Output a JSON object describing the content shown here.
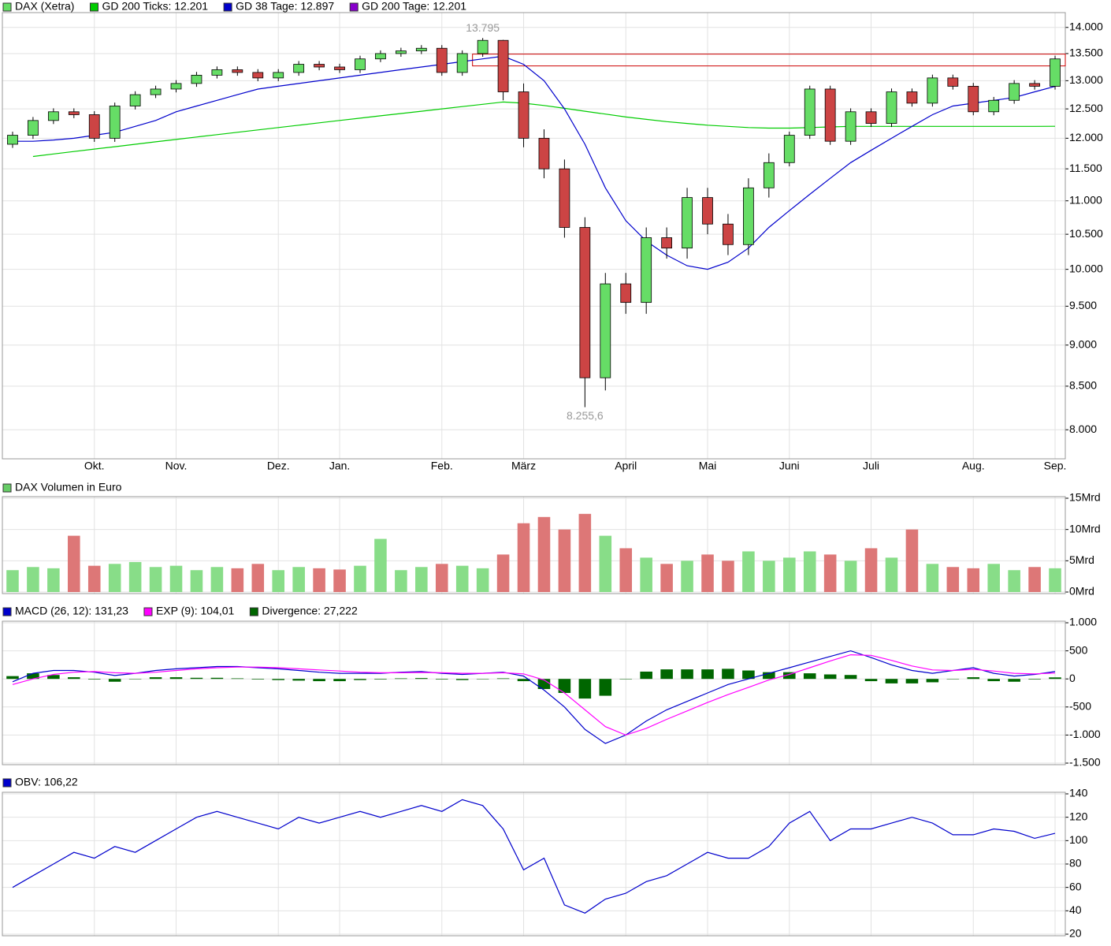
{
  "chart_data": [
    {
      "type": "candlestick",
      "categories": [
        null,
        null,
        null,
        null,
        "Okt.",
        null,
        null,
        null,
        "Nov.",
        null,
        null,
        null,
        null,
        "Dez.",
        null,
        null,
        "Jan.",
        null,
        null,
        null,
        null,
        "Feb.",
        null,
        null,
        null,
        "März",
        null,
        null,
        null,
        null,
        "April",
        null,
        null,
        null,
        "Mai",
        null,
        null,
        null,
        "Juni",
        null,
        null,
        null,
        "Juli",
        null,
        null,
        null,
        null,
        "Aug.",
        null,
        null,
        null,
        "Sep."
      ],
      "open": [
        11900,
        12050,
        12300,
        12450,
        12400,
        12000,
        12550,
        12750,
        12850,
        12950,
        13100,
        13200,
        13150,
        13050,
        13150,
        13300,
        13250,
        13200,
        13400,
        13500,
        13550,
        13600,
        13150,
        13500,
        13750,
        12800,
        12000,
        11500,
        10600,
        8600,
        9800,
        9550,
        10450,
        10300,
        11050,
        10650,
        10350,
        11200,
        11600,
        12050,
        12850,
        11950,
        12450,
        12250,
        12800,
        12600,
        13050,
        12900,
        12450,
        12650,
        12950,
        12900
      ],
      "high": [
        12110,
        12360,
        12510,
        12510,
        12460,
        12610,
        12810,
        12910,
        13010,
        13160,
        13260,
        13260,
        13210,
        13210,
        13360,
        13360,
        13310,
        13460,
        13560,
        13610,
        13660,
        13660,
        13560,
        13795,
        13760,
        12950,
        12150,
        11650,
        10750,
        9950,
        9950,
        10600,
        10600,
        11200,
        11200,
        10800,
        11350,
        11750,
        12110,
        12910,
        12910,
        12510,
        12510,
        12860,
        12860,
        13110,
        13110,
        12960,
        12710,
        13010,
        13010,
        13460
      ],
      "low": [
        11840,
        11990,
        12240,
        12340,
        11940,
        11940,
        12490,
        12690,
        12790,
        12890,
        13040,
        13090,
        12990,
        12990,
        13090,
        13190,
        13140,
        13140,
        13340,
        13440,
        13490,
        13090,
        13090,
        13440,
        12650,
        11850,
        11350,
        10450,
        8255.6,
        8450,
        9400,
        9400,
        10150,
        10150,
        10500,
        10200,
        10200,
        11050,
        11540,
        11990,
        11890,
        11890,
        12190,
        12190,
        12540,
        12540,
        12840,
        12390,
        12390,
        12590,
        12840,
        12840
      ],
      "close": [
        12050,
        12300,
        12450,
        12400,
        12000,
        12550,
        12750,
        12850,
        12950,
        13100,
        13200,
        13150,
        13050,
        13150,
        13300,
        13250,
        13200,
        13400,
        13500,
        13550,
        13600,
        13150,
        13500,
        13750,
        12800,
        12000,
        11500,
        10600,
        8600,
        9800,
        9550,
        10450,
        10300,
        11050,
        10650,
        10350,
        11200,
        11600,
        12050,
        12850,
        11950,
        12450,
        12250,
        12800,
        12600,
        13050,
        12900,
        12450,
        12650,
        12950,
        12900,
        13400
      ],
      "up_color": "#66dd66",
      "down_color": "#cc4444",
      "series": [
        {
          "name": "DAX (Xetra)",
          "color": "#66dd66"
        },
        {
          "name": "GD 200 Ticks: 12.201",
          "color": "#00cc00",
          "values": [
            null,
            11700,
            11740,
            11780,
            11820,
            11860,
            11900,
            11940,
            11980,
            12020,
            12060,
            12100,
            12140,
            12180,
            12220,
            12260,
            12300,
            12340,
            12380,
            12420,
            12460,
            12500,
            12540,
            12580,
            12620,
            12600,
            12560,
            12510,
            12460,
            12410,
            12360,
            12320,
            12280,
            12250,
            12220,
            12200,
            12180,
            12170,
            12170,
            12180,
            12190,
            12200,
            12200,
            12200,
            12200,
            12200,
            12200,
            12200,
            12200,
            12200,
            12200,
            12201
          ]
        },
        {
          "name": "GD 38 Tage: 12.897",
          "color": "#0000cc",
          "values": [
            11950,
            11950,
            11970,
            12000,
            12050,
            12100,
            12200,
            12300,
            12450,
            12550,
            12650,
            12750,
            12850,
            12900,
            12950,
            13000,
            13050,
            13100,
            13150,
            13200,
            13250,
            13300,
            13350,
            13400,
            13450,
            13300,
            13000,
            12500,
            11900,
            11200,
            10700,
            10400,
            10200,
            10050,
            10000,
            10100,
            10300,
            10600,
            10850,
            11100,
            11350,
            11600,
            11800,
            12000,
            12200,
            12400,
            12550,
            12600,
            12650,
            12700,
            12800,
            12897
          ]
        },
        {
          "name": "GD 200 Tage: 12.201",
          "color": "#8800cc"
        }
      ],
      "log": true,
      "ylim": [
        7700,
        14260
      ],
      "yticks": [
        {
          "value": 14000,
          "label": "14.000"
        },
        {
          "value": 13500,
          "label": "13.500"
        },
        {
          "value": 13000,
          "label": "13.000"
        },
        {
          "value": 12500,
          "label": "12.500"
        },
        {
          "value": 12000,
          "label": "12.000"
        },
        {
          "value": 11500,
          "label": "11.500"
        },
        {
          "value": 11000,
          "label": "11.000"
        },
        {
          "value": 10500,
          "label": "10.500"
        },
        {
          "value": 10000,
          "label": "10.000"
        },
        {
          "value": 9500,
          "label": "9.500"
        },
        {
          "value": 9000,
          "label": "9.000"
        },
        {
          "value": 8500,
          "label": "8.500"
        },
        {
          "value": 8000,
          "label": "8.000"
        }
      ],
      "grid": true,
      "annotations": [
        {
          "value": 13795,
          "label": "13.795"
        },
        {
          "value": 8255.6,
          "label": "8.255,6"
        }
      ],
      "zone": [
        13270,
        13490
      ],
      "zone_color": "#cc0000"
    },
    {
      "type": "bar",
      "series": [
        {
          "name": "DAX Volumen in Euro",
          "color": "#66cc66"
        }
      ],
      "values": [
        3.5,
        4,
        3.8,
        9,
        4.2,
        4.5,
        4.8,
        4,
        4.2,
        3.5,
        4,
        3.8,
        4.5,
        3.5,
        4,
        3.8,
        3.6,
        4.2,
        8.5,
        3.5,
        4,
        4.5,
        4.2,
        3.8,
        6,
        11,
        12,
        10,
        12.5,
        9,
        7,
        5.5,
        4.5,
        5,
        6,
        5,
        6.5,
        5,
        5.5,
        6.5,
        6,
        5,
        7,
        5.5,
        10,
        4.5,
        4,
        3.8,
        4.5,
        3.5,
        4,
        3.8
      ],
      "up_color": "#88dd88",
      "down_color": "#dd7777",
      "ylim": [
        0,
        15
      ],
      "yticks": [
        {
          "value": 15,
          "label": "15Mrd"
        },
        {
          "value": 10,
          "label": "10Mrd"
        },
        {
          "value": 5,
          "label": "5Mrd"
        },
        {
          "value": 0,
          "label": "0Mrd"
        }
      ],
      "grid": true
    },
    {
      "type": "macd",
      "series": [
        {
          "name": "MACD (26, 12): 131,23",
          "color": "#0000cc",
          "values": [
            -50,
            100,
            150,
            150,
            120,
            60,
            100,
            150,
            180,
            200,
            220,
            220,
            200,
            180,
            150,
            120,
            100,
            100,
            100,
            120,
            130,
            100,
            80,
            100,
            120,
            50,
            -200,
            -500,
            -900,
            -1150,
            -1000,
            -750,
            -550,
            -400,
            -250,
            -100,
            0,
            100,
            200,
            300,
            400,
            500,
            380,
            250,
            150,
            100,
            150,
            200,
            100,
            50,
            80,
            131.23
          ]
        },
        {
          "name": "EXP (9): 104,01",
          "color": "#ff00ff",
          "values": [
            -100,
            0,
            80,
            120,
            130,
            110,
            100,
            120,
            150,
            180,
            200,
            210,
            210,
            200,
            180,
            160,
            140,
            120,
            110,
            110,
            115,
            110,
            100,
            100,
            110,
            90,
            -20,
            -250,
            -550,
            -850,
            -1000,
            -880,
            -720,
            -570,
            -420,
            -280,
            -150,
            -20,
            80,
            200,
            320,
            430,
            420,
            330,
            230,
            160,
            150,
            170,
            140,
            100,
            90,
            104.01
          ]
        },
        {
          "name": "Divergence: 27,222",
          "color": "#006600",
          "type": "bar",
          "values": [
            50,
            100,
            70,
            30,
            -10,
            -50,
            0,
            30,
            30,
            20,
            20,
            10,
            -10,
            -20,
            -30,
            -40,
            -40,
            -20,
            -10,
            10,
            15,
            -10,
            -20,
            0,
            10,
            -40,
            -180,
            -250,
            -350,
            -300,
            0,
            130,
            170,
            170,
            170,
            180,
            150,
            120,
            120,
            100,
            80,
            70,
            -40,
            -80,
            -80,
            -60,
            0,
            30,
            -40,
            -50,
            -10,
            27.222
          ]
        }
      ],
      "ylim": [
        -1500,
        1000
      ],
      "yticks": [
        {
          "value": 1000,
          "label": "1.000"
        },
        500,
        0,
        -500,
        {
          "value": -1000,
          "label": "-1.000"
        },
        {
          "value": -1500,
          "label": "-1.500"
        }
      ],
      "grid": true
    },
    {
      "type": "line",
      "series": [
        {
          "name": "OBV: 106,22",
          "color": "#0000cc",
          "values": [
            60,
            70,
            80,
            90,
            85,
            95,
            90,
            100,
            110,
            120,
            125,
            120,
            115,
            110,
            120,
            115,
            120,
            125,
            120,
            125,
            130,
            125,
            135,
            130,
            110,
            75,
            85,
            45,
            38,
            50,
            55,
            65,
            70,
            80,
            90,
            85,
            85,
            95,
            115,
            125,
            100,
            110,
            110,
            115,
            120,
            115,
            105,
            105,
            110,
            108,
            102,
            106.22
          ]
        }
      ],
      "ylim": [
        20,
        140
      ],
      "yticks": [
        140,
        120,
        100,
        80,
        60,
        40,
        20
      ],
      "grid": true
    }
  ]
}
